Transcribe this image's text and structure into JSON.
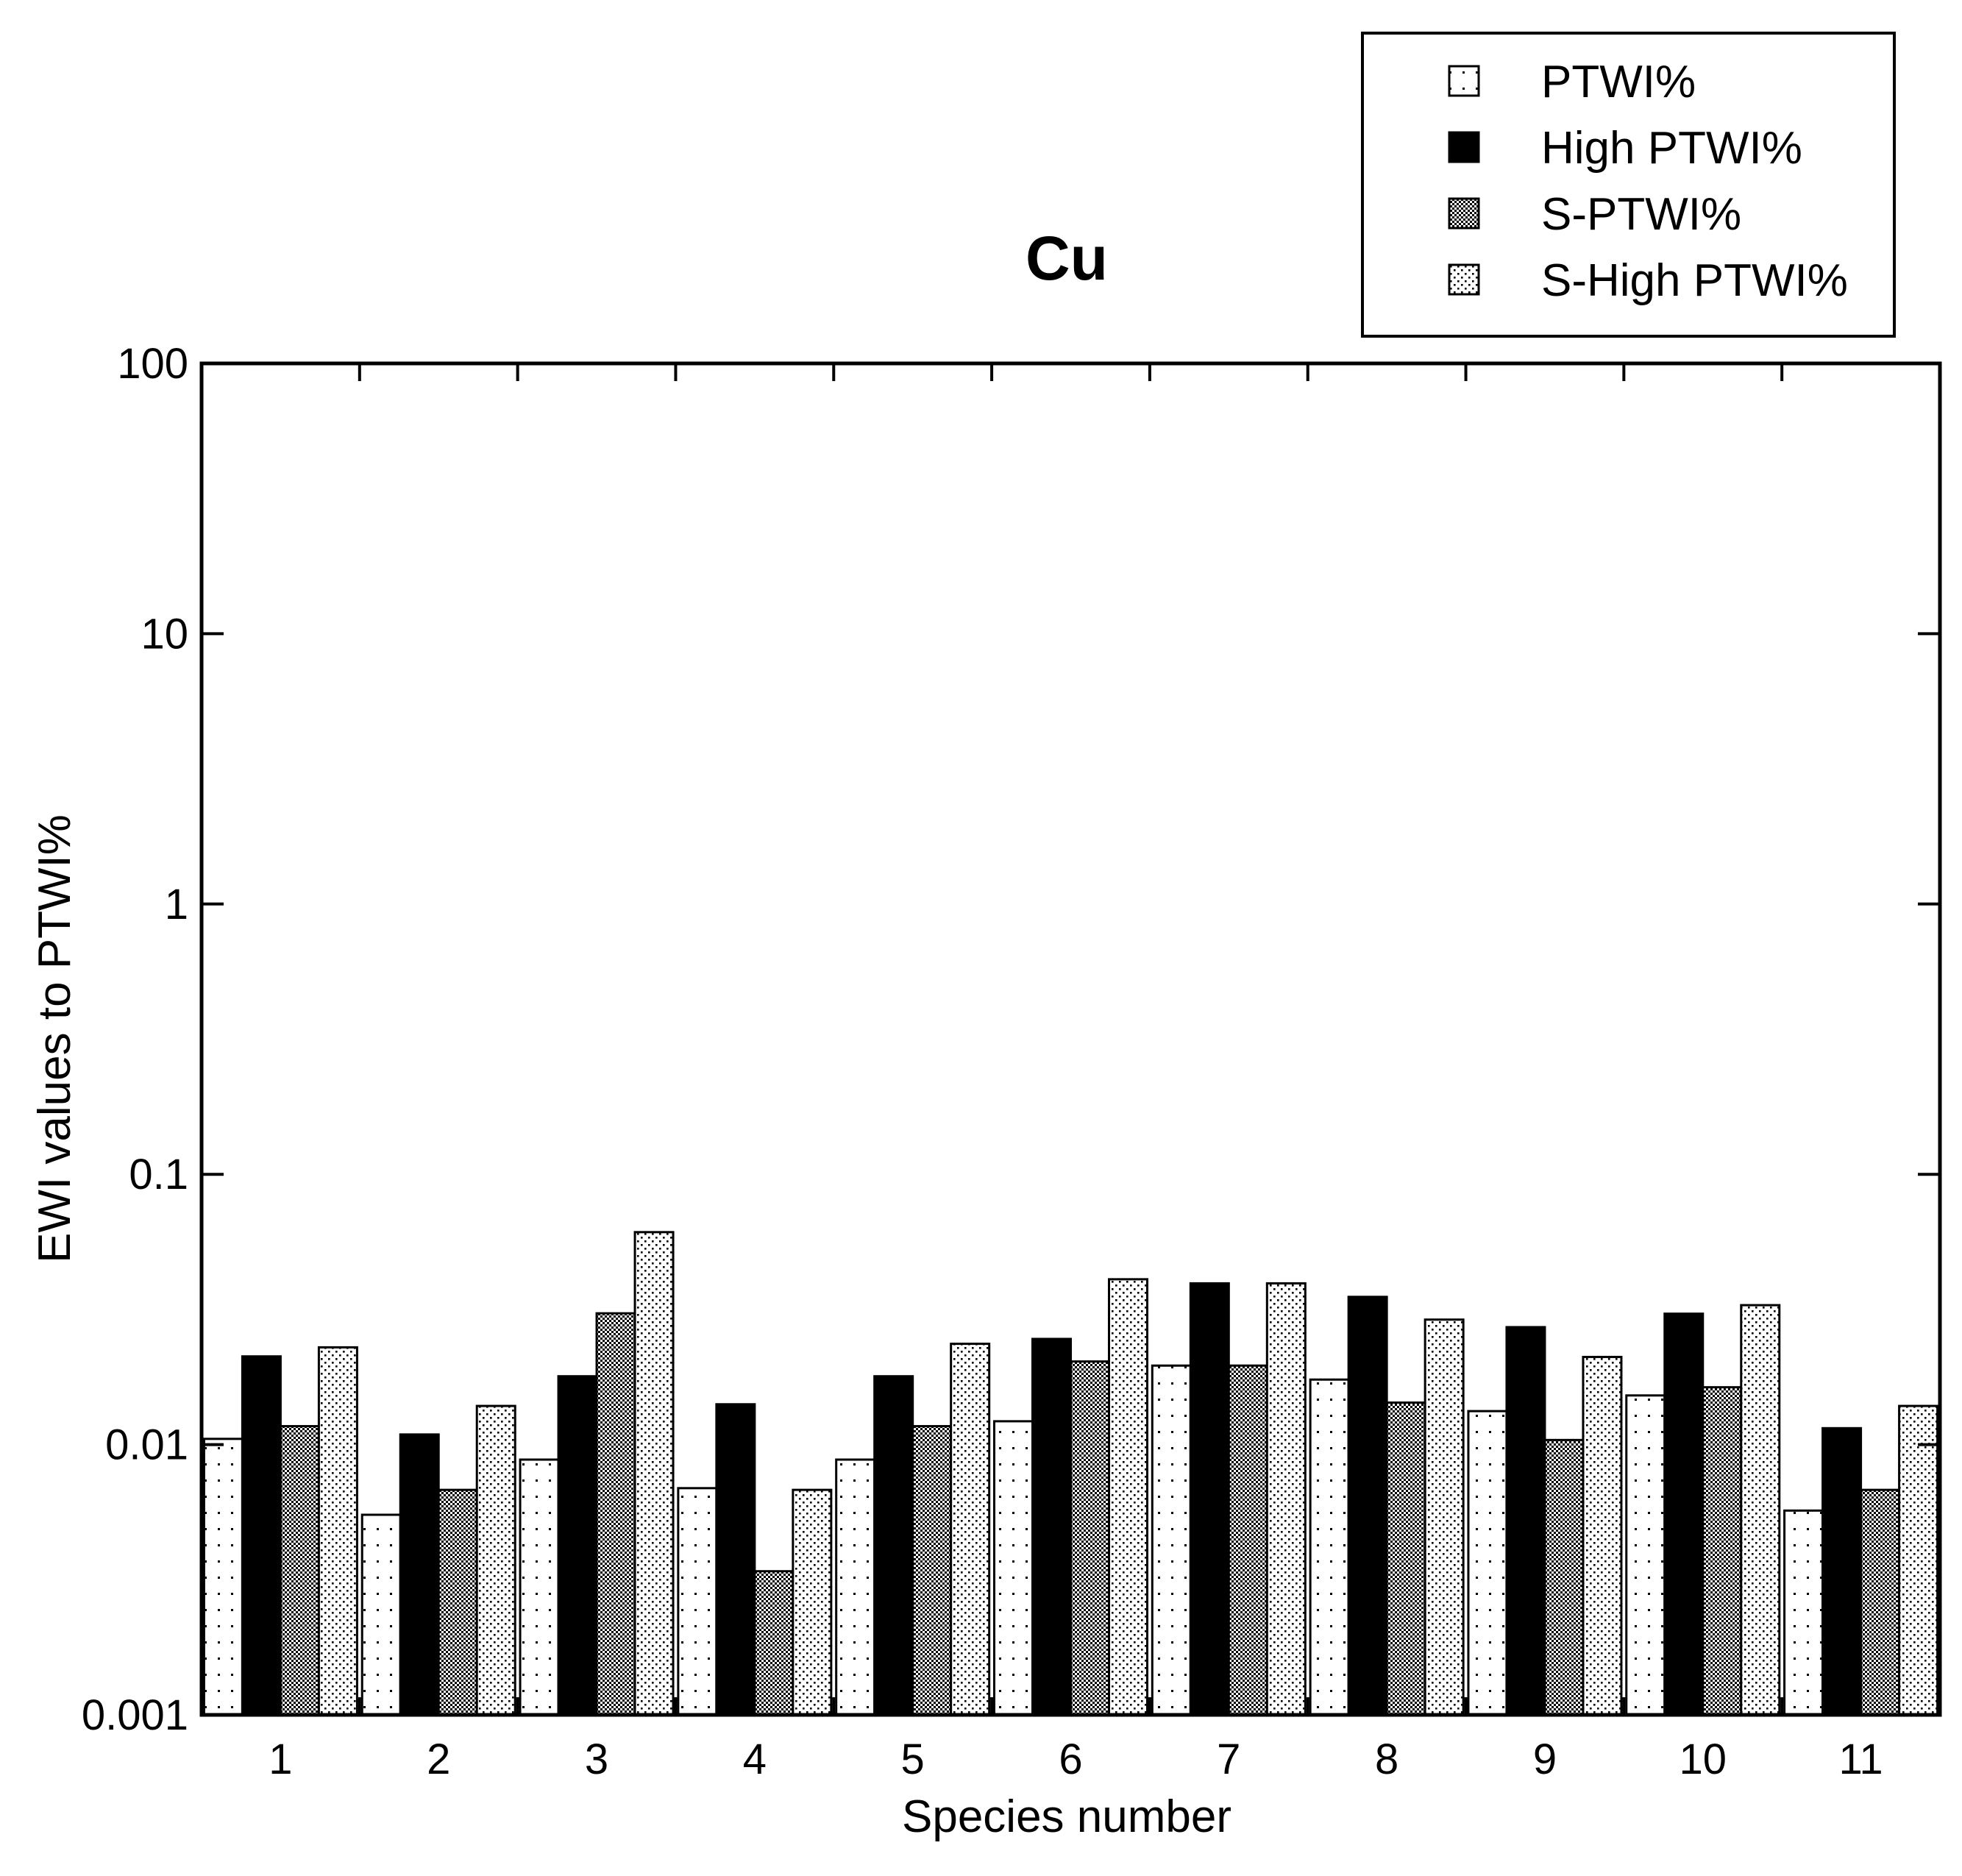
{
  "chart_data": {
    "type": "bar",
    "title": "Cu",
    "xlabel": "Species number",
    "ylabel": "EWI values to PTWI%",
    "yscale": "log",
    "ylim": [
      0.001,
      100
    ],
    "yticks": [
      0.001,
      0.01,
      0.1,
      1,
      10,
      100
    ],
    "ytick_labels": [
      "0.001",
      "0.01",
      "0.1",
      "1",
      "10",
      "100"
    ],
    "categories": [
      "1",
      "2",
      "3",
      "4",
      "5",
      "6",
      "7",
      "8",
      "9",
      "10",
      "11"
    ],
    "legend_position": "top-right",
    "series": [
      {
        "name": "PTWI%",
        "pattern": "sparse-dots",
        "values": [
          0.0105,
          0.0055,
          0.0088,
          0.0069,
          0.0088,
          0.0122,
          0.0196,
          0.0174,
          0.0133,
          0.0152,
          0.0057
        ]
      },
      {
        "name": "High PTWI%",
        "pattern": "solid-black",
        "values": [
          0.0212,
          0.0109,
          0.0179,
          0.0141,
          0.0179,
          0.0246,
          0.0395,
          0.0352,
          0.0272,
          0.0305,
          0.0115
        ]
      },
      {
        "name": "S-PTWI%",
        "pattern": "crosshatch",
        "values": [
          0.0117,
          0.0068,
          0.0306,
          0.0034,
          0.0117,
          0.0203,
          0.0196,
          0.0143,
          0.0104,
          0.0163,
          0.0068
        ]
      },
      {
        "name": "S-High PTWI%",
        "pattern": "dense-dots",
        "values": [
          0.0229,
          0.0139,
          0.0611,
          0.0068,
          0.0236,
          0.0409,
          0.0395,
          0.029,
          0.0211,
          0.0328,
          0.0139
        ]
      }
    ]
  },
  "colors": {
    "axis": "#000000",
    "background": "#ffffff",
    "solid": "#000000"
  }
}
